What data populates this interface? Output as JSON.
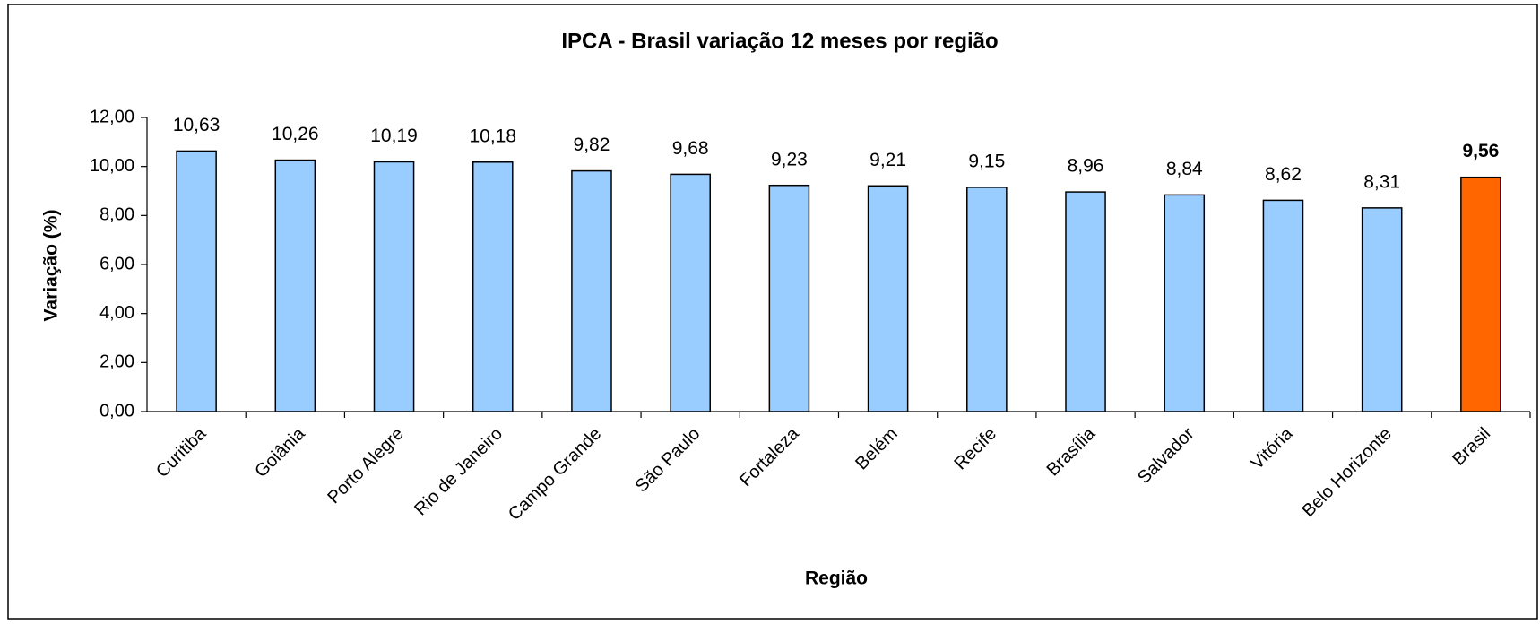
{
  "chart_data": {
    "type": "bar",
    "title": "IPCA - Brasil variação 12 meses por região",
    "x_label": "Região",
    "y_label": "Variação (%)",
    "categories": [
      "Curitiba",
      "Goiânia",
      "Porto Alegre",
      "Rio de Janeiro",
      "Campo Grande",
      "São Paulo",
      "Fortaleza",
      "Belém",
      "Recife",
      "Brasília",
      "Salvador",
      "Vitória",
      "Belo Horizonte",
      "Brasil"
    ],
    "values": [
      10.63,
      10.26,
      10.19,
      10.18,
      9.82,
      9.68,
      9.23,
      9.21,
      9.15,
      8.96,
      8.84,
      8.62,
      8.31,
      9.56
    ],
    "value_labels": [
      "10,63",
      "10,26",
      "10,19",
      "10,18",
      "9,82",
      "9,68",
      "9,23",
      "9,21",
      "9,15",
      "8,96",
      "8,84",
      "8,62",
      "8,31",
      "9,56"
    ],
    "color": "#99ccff",
    "colors": [
      "#99ccff",
      "#99ccff",
      "#99ccff",
      "#99ccff",
      "#99ccff",
      "#99ccff",
      "#99ccff",
      "#99ccff",
      "#99ccff",
      "#99ccff",
      "#99ccff",
      "#99ccff",
      "#99ccff",
      "#ff6600"
    ],
    "ylim": [
      0,
      12
    ],
    "yticks": [
      {
        "value": 0,
        "label": "0,00"
      },
      {
        "value": 2,
        "label": "2,00"
      },
      {
        "value": 4,
        "label": "4,00"
      },
      {
        "value": 6,
        "label": "6,00"
      },
      {
        "value": 8,
        "label": "8,00"
      },
      {
        "value": 10,
        "label": "10,00"
      },
      {
        "value": 12,
        "label": "12,00"
      }
    ],
    "grid": false
  }
}
